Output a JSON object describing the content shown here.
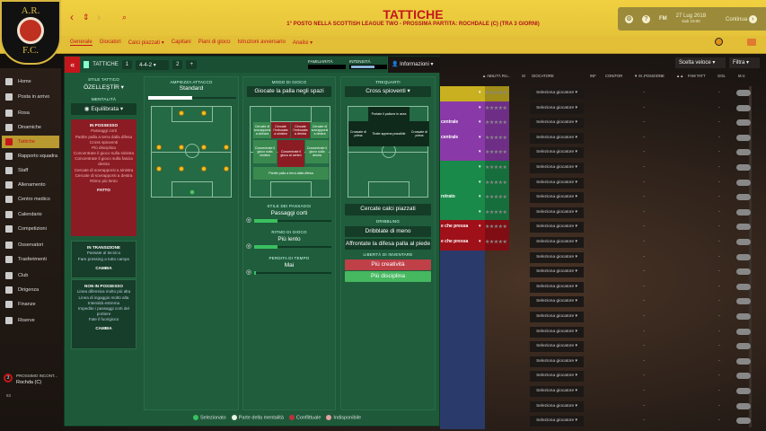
{
  "header": {
    "title": "TATTICHE",
    "subtitle": "1° POSTO NELLA SCOTTISH LEAGUE TWO - PROSSIMA PARTITA: ROCHDALE (C) (TRA 3 GIORNI)",
    "date": "27 Lug 2018",
    "time": "Sab 10:00",
    "fm": "FM",
    "continue": "Continua",
    "logo_text": [
      "A.R.",
      "F.C."
    ]
  },
  "tabs": [
    "Generale",
    "Giocatori",
    "Calci piazzati ▾",
    "Capitani",
    "Piani di gioco",
    "Istruzioni avversario",
    "Analisi ▾"
  ],
  "sidebar": {
    "items": [
      "Home",
      "Posta in arrivo",
      "Rosa",
      "Dinamiche",
      "Tattiche",
      "Rapporto squadra",
      "Staff",
      "Allenamento",
      "Centro medico",
      "Calendario",
      "Competizioni",
      "Osservatori",
      "Trasferimenti",
      "Club",
      "Dirigenza",
      "Finanze",
      "Riserve"
    ],
    "active": 4,
    "next_match_label": "PROSSIMO INCONT...",
    "next_match": "Rochda (C)",
    "next_days": "3",
    "footer": "83"
  },
  "panel": {
    "tactics_label": "TATTICHE",
    "slot1": "1",
    "formation": "4-4-2 ▾",
    "slot2": "2",
    "add": "+",
    "familiarity": "FAMILIARITÀ",
    "intensity": "INTENSITÀ",
    "info": "Informazioni ▾",
    "style_label": "STILE TATTICO",
    "style_value": "ÖZELLEŞTİR ▾",
    "mentality_label": "MENTALITÀ",
    "mentality": "Equilibrata",
    "in_possession": {
      "title": "IN POSSESSO",
      "items": [
        "Passaggi corti",
        "Partite palla a terra dalla difesa",
        "Cross spioventi",
        "Più disciplina",
        "Concentrate il gioco sulla sinistra",
        "Concentrate il gioco sulla fascia destra",
        "Cercate di sovrapporsi a sinistra",
        "Cercate di sovrapporsi a destra",
        "Ritmo più lento"
      ],
      "button": "FATTO"
    },
    "transition": {
      "title": "IN TRANSIZIONE",
      "items": [
        "Passate al tecnico",
        "Fare pressing a tutto campo"
      ],
      "button": "CAMBIA"
    },
    "out_possession": {
      "title": "NON IN POSSESSO",
      "items": [
        "Linea difensiva molto più alta",
        "Linea di ingaggio molto alta",
        "Intensità estrema",
        "Impedite i passaggi corti del portiere",
        "Fate il fuorigioco"
      ],
      "button": "CAMBIA"
    },
    "width_label": "AMPIEZZA ATTACCO",
    "width_value": "Standard",
    "width_level": 0.5,
    "approach_label": "MODO DI GIOCO",
    "approach": "Giocate la palla negli spazi",
    "zones": [
      "Cercate di sovrapporsi a sinistra",
      "Cercate l'imbucata a sinistra",
      "Cercate l'imbucata a destra",
      "Cercate di sovrapporsi a destra",
      "Concentrate il gioco sulla sinistra",
      "Concentrate il gioco al centro",
      "Concentrate il gioco sulla destra",
      "Partite palla a terra dalla difesa"
    ],
    "passing_label": "STILE DEI PASSAGGI",
    "passing": "Passaggi corti",
    "passing_level": 0.3,
    "tempo_label": "RITMO DI GIOCO",
    "tempo": "Più lento",
    "tempo_level": 0.3,
    "timewaste_label": "PERDITA DI TEMPO",
    "timewaste": "Mai",
    "timewaste_level": 0.02,
    "final_third_label": "TREQUARTI",
    "final_third": "Cross spioventi ▾",
    "ft_zones": [
      "Portate il pallone in area",
      "Crossate di prima",
      "Tirate appena possibile",
      "Crossate di prima"
    ],
    "set_pieces": "Cercate calci piazzati",
    "dribbling_label": "DRIBBLING",
    "dribble1": "Dribblate di meno",
    "dribble2": "Affrontate la difesa palla al piede",
    "freedom_label": "LIBERTÀ DI INVENTARE",
    "creative": "Più creatività",
    "discipline": "Più disciplina"
  },
  "legend": [
    "Selezionato",
    "Parte della mentalità",
    "Conflittuale",
    "Indisponibile"
  ],
  "colors": {
    "selected": "#3ac060",
    "mentality": "#e8f5e0",
    "conflict": "#c0303a",
    "unavailable": "#e8a0a0",
    "gk": "#c8b020",
    "def": "#8a3aa8",
    "mid": "#1a8a4a",
    "att": "#a01018",
    "subs": "#2a3a6a"
  },
  "table": {
    "quick_pick": "Scelta veloce",
    "filter": "Filtra ▾",
    "headers": [
      "▲ ABILITÀ RU...",
      "SI",
      "GIOCATORE",
      "INF",
      "CON/FOR",
      "▼ M...",
      "POSIZIONE",
      "▲▲",
      "FAM TATT",
      "GOL",
      "M.V."
    ],
    "select_label": "Seleziona giocatore",
    "dash": "-",
    "role_fragments": [
      "",
      "",
      "centrale",
      "centrale",
      "",
      "",
      "",
      "retrato",
      "",
      "e che pressa",
      "e che pressa"
    ],
    "row_count": 23
  }
}
